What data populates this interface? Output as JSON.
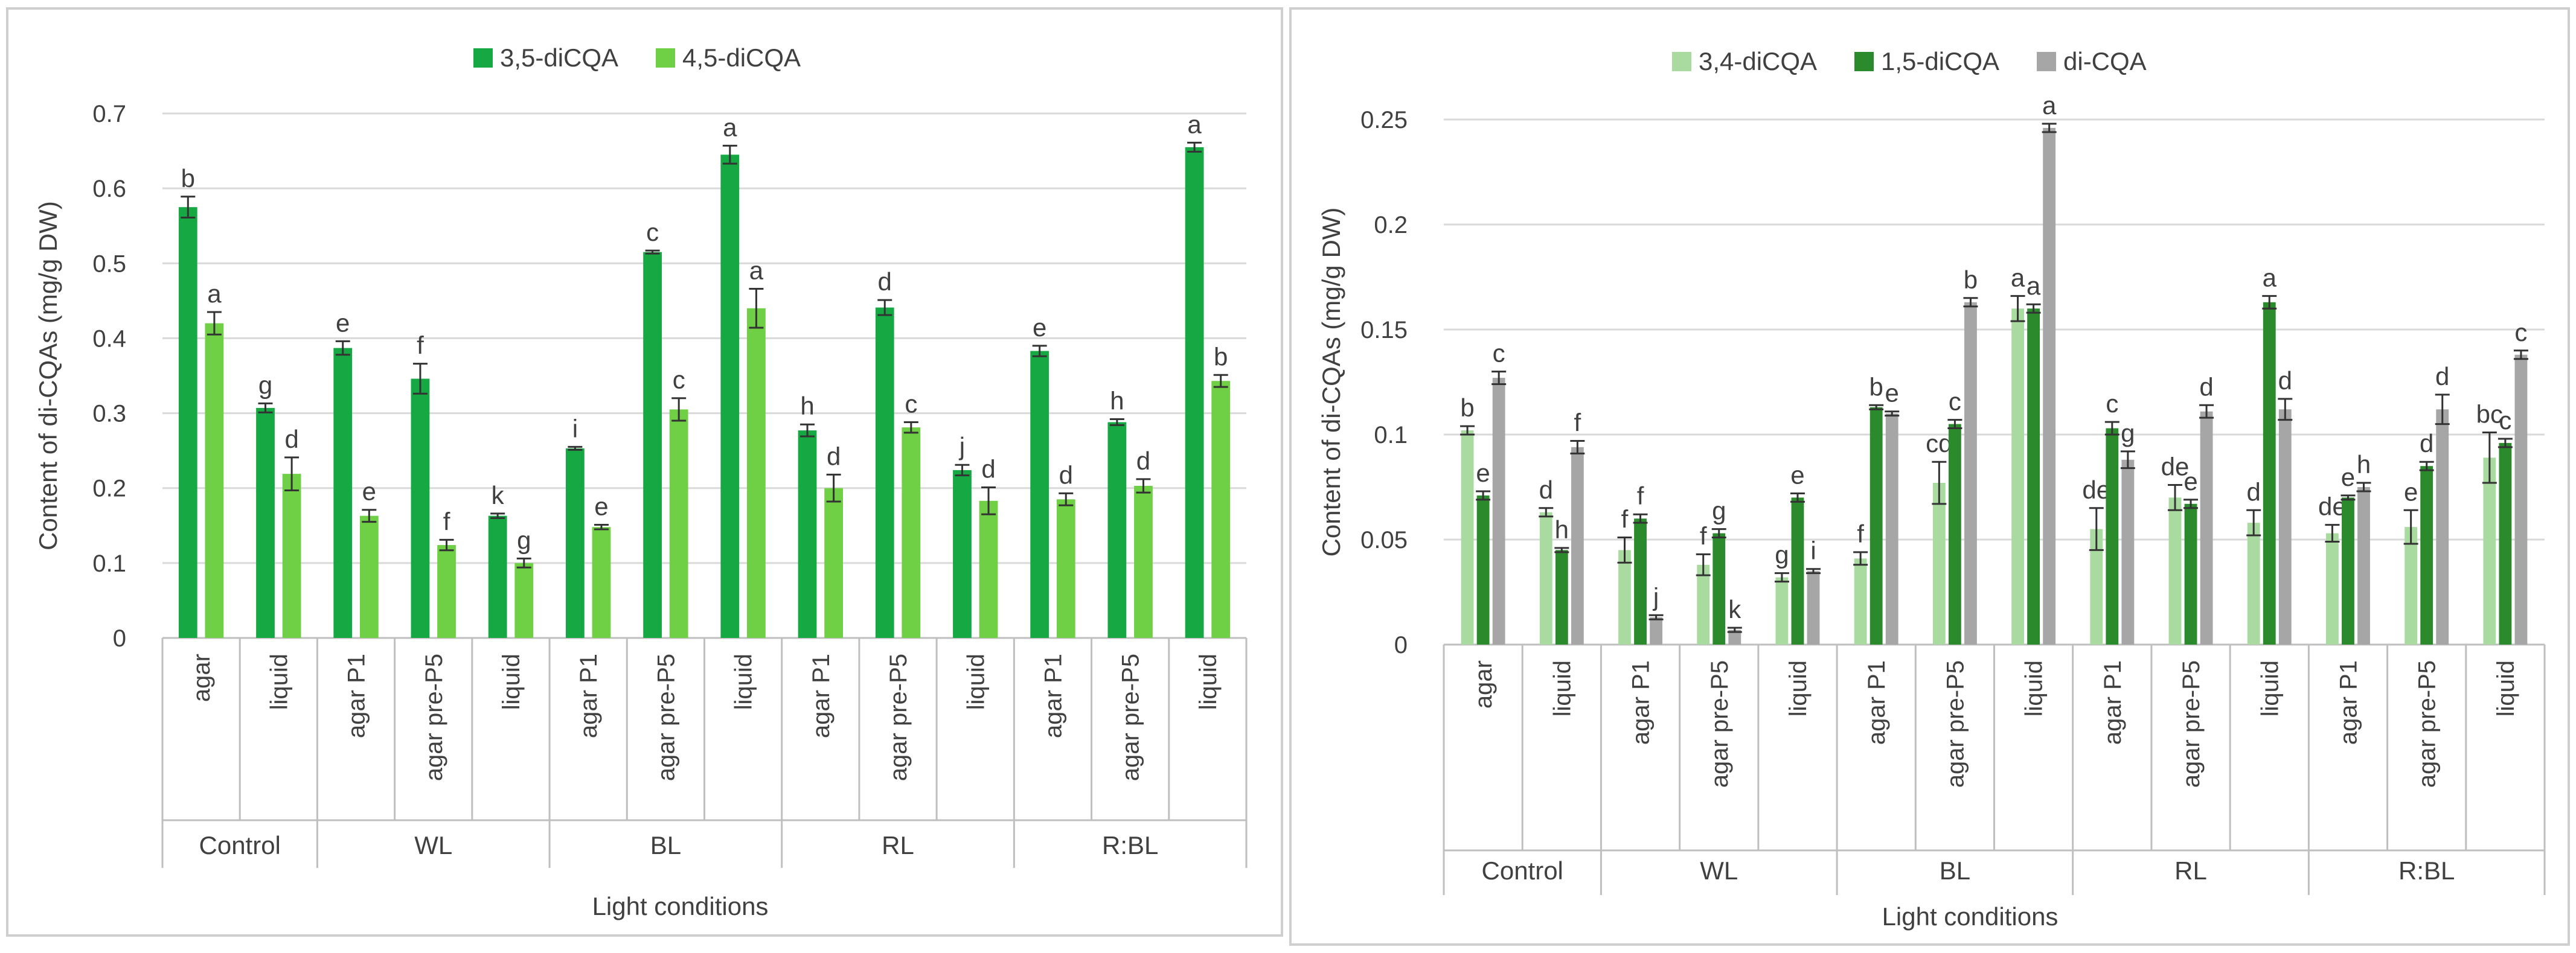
{
  "chart_data": [
    {
      "type": "bar",
      "xlabel": "Light conditions",
      "ylabel": "Content of di-CQAs (mg/g DW)",
      "ylim": [
        0,
        0.7
      ],
      "yticks": [
        0,
        0.1,
        0.2,
        0.3,
        0.4,
        0.5,
        0.6,
        0.7
      ],
      "ytick_labels": [
        "0",
        "0.1",
        "0.2",
        "0.3",
        "0.4",
        "0.5",
        "0.6",
        "0.7"
      ],
      "grid": true,
      "legend_position": "top-center",
      "groups": [
        {
          "label": "Control",
          "categories": [
            "agar",
            "liquid"
          ]
        },
        {
          "label": "WL",
          "categories": [
            "agar P1",
            "agar pre-P5",
            "liquid"
          ]
        },
        {
          "label": "BL",
          "categories": [
            "agar P1",
            "agar pre-P5",
            "liquid"
          ]
        },
        {
          "label": "RL",
          "categories": [
            "agar P1",
            "agar pre-P5",
            "liquid"
          ]
        },
        {
          "label": "R:BL",
          "categories": [
            "agar P1",
            "agar pre-P5",
            "liquid"
          ]
        }
      ],
      "series": [
        {
          "name": "3,5-diCQA",
          "color": "#16a843",
          "values": [
            0.575,
            0.307,
            0.387,
            0.346,
            0.163,
            0.253,
            0.515,
            0.645,
            0.277,
            0.441,
            0.224,
            0.383,
            0.288,
            0.655
          ],
          "errors": [
            0.014,
            0.006,
            0.009,
            0.02,
            0.003,
            0.002,
            0.002,
            0.012,
            0.008,
            0.01,
            0.007,
            0.007,
            0.004,
            0.006
          ],
          "labels": [
            "b",
            "g",
            "e",
            "f",
            "k",
            "i",
            "c",
            "a",
            "h",
            "d",
            "j",
            "e",
            "h",
            "a"
          ]
        },
        {
          "name": "4,5-diCQA",
          "color": "#6fcf45",
          "values": [
            0.42,
            0.219,
            0.163,
            0.124,
            0.1,
            0.148,
            0.305,
            0.44,
            0.2,
            0.281,
            0.183,
            0.185,
            0.203,
            0.343
          ],
          "errors": [
            0.015,
            0.022,
            0.008,
            0.007,
            0.006,
            0.003,
            0.015,
            0.026,
            0.018,
            0.007,
            0.018,
            0.008,
            0.009,
            0.008
          ],
          "labels": [
            "a",
            "d",
            "e",
            "f",
            "g",
            "e",
            "c",
            "a",
            "d",
            "c",
            "d",
            "d",
            "d",
            "b"
          ]
        }
      ]
    },
    {
      "type": "bar",
      "xlabel": "Light conditions",
      "ylabel": "Content of di-CQAs (mg/g DW)",
      "ylim": [
        0,
        0.25
      ],
      "yticks": [
        0,
        0.05,
        0.1,
        0.15,
        0.2,
        0.25
      ],
      "ytick_labels": [
        "0",
        "0.05",
        "0.1",
        "0.15",
        "0.2",
        "0.25"
      ],
      "grid": true,
      "legend_position": "top-center",
      "groups": [
        {
          "label": "Control",
          "categories": [
            "agar",
            "liquid"
          ]
        },
        {
          "label": "WL",
          "categories": [
            "agar P1",
            "agar pre-P5",
            "liquid"
          ]
        },
        {
          "label": "BL",
          "categories": [
            "agar P1",
            "agar pre-P5",
            "liquid"
          ]
        },
        {
          "label": "RL",
          "categories": [
            "agar P1",
            "agar pre-P5",
            "liquid"
          ]
        },
        {
          "label": "R:BL",
          "categories": [
            "agar P1",
            "agar pre-P5",
            "liquid"
          ]
        }
      ],
      "series": [
        {
          "name": "3,4-diCQA",
          "color": "#a9dba0",
          "values": [
            0.102,
            0.063,
            0.045,
            0.038,
            0.032,
            0.041,
            0.077,
            0.16,
            0.055,
            0.07,
            0.058,
            0.053,
            0.056,
            0.089
          ],
          "errors": [
            0.002,
            0.002,
            0.006,
            0.005,
            0.002,
            0.003,
            0.01,
            0.006,
            0.01,
            0.006,
            0.006,
            0.004,
            0.008,
            0.012
          ],
          "labels": [
            "b",
            "d",
            "f",
            "f",
            "g",
            "f",
            "cd",
            "a",
            "de",
            "de",
            "d",
            "de",
            "e",
            "bc"
          ]
        },
        {
          "name": "1,5-diCQA",
          "color": "#2b8a2b",
          "values": [
            0.071,
            0.045,
            0.06,
            0.053,
            0.07,
            0.113,
            0.105,
            0.16,
            0.103,
            0.067,
            0.163,
            0.07,
            0.085,
            0.096
          ],
          "errors": [
            0.002,
            0.001,
            0.002,
            0.002,
            0.002,
            0.001,
            0.002,
            0.002,
            0.003,
            0.002,
            0.003,
            0.001,
            0.002,
            0.002
          ],
          "labels": [
            "e",
            "h",
            "f",
            "g",
            "e",
            "b",
            "c",
            "a",
            "c",
            "e",
            "a",
            "e",
            "d",
            "c"
          ]
        },
        {
          "name": "di-CQA",
          "color": "#a6a6a6",
          "values": [
            0.127,
            0.094,
            0.013,
            0.007,
            0.035,
            0.11,
            0.163,
            0.246,
            0.088,
            0.111,
            0.112,
            0.075,
            0.112,
            0.138
          ],
          "errors": [
            0.003,
            0.003,
            0.001,
            0.001,
            0.001,
            0.001,
            0.002,
            0.002,
            0.004,
            0.003,
            0.005,
            0.002,
            0.007,
            0.002
          ],
          "labels": [
            "c",
            "f",
            "j",
            "k",
            "i",
            "e",
            "b",
            "a",
            "g",
            "d",
            "d",
            "h",
            "d",
            "c"
          ]
        }
      ]
    }
  ]
}
